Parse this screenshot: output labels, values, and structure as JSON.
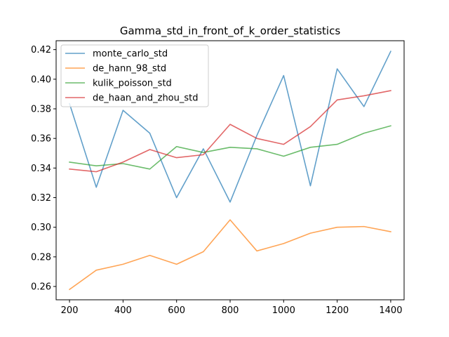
{
  "chart_data": {
    "type": "line",
    "title": "Gamma_std_in_front_of_k_order_statistics",
    "xlabel": "",
    "ylabel": "",
    "x": [
      200,
      300,
      400,
      500,
      600,
      700,
      800,
      900,
      1000,
      1100,
      1200,
      1300,
      1400
    ],
    "xlim": [
      150,
      1450
    ],
    "ylim": [
      0.251,
      0.426
    ],
    "xticks": [
      200,
      400,
      600,
      800,
      1000,
      1200,
      1400
    ],
    "xtick_labels": [
      "200",
      "400",
      "600",
      "800",
      "1000",
      "1200",
      "1400"
    ],
    "yticks": [
      0.26,
      0.28,
      0.3,
      0.32,
      0.34,
      0.36,
      0.38,
      0.4,
      0.42
    ],
    "ytick_labels": [
      "0.26",
      "0.28",
      "0.30",
      "0.32",
      "0.34",
      "0.36",
      "0.38",
      "0.40",
      "0.42"
    ],
    "grid": false,
    "legend_position": "top-left",
    "series": [
      {
        "name": "monte_carlo_std",
        "color": "#1f77b4",
        "values": [
          0.3835,
          0.327,
          0.379,
          0.3635,
          0.32,
          0.353,
          0.317,
          0.362,
          0.4025,
          0.328,
          0.407,
          0.3815,
          0.4188
        ]
      },
      {
        "name": "de_hann_98_std",
        "color": "#ff7f0e",
        "values": [
          0.258,
          0.271,
          0.275,
          0.281,
          0.275,
          0.2835,
          0.305,
          0.284,
          0.289,
          0.296,
          0.3,
          0.3005,
          0.297
        ]
      },
      {
        "name": "kulik_poisson_std",
        "color": "#2ca02c",
        "values": [
          0.344,
          0.3415,
          0.343,
          0.3393,
          0.3545,
          0.3505,
          0.354,
          0.353,
          0.348,
          0.354,
          0.356,
          0.3635,
          0.3685
        ]
      },
      {
        "name": "de_haan_and_zhou_std",
        "color": "#d62728",
        "values": [
          0.3393,
          0.3375,
          0.344,
          0.3525,
          0.347,
          0.349,
          0.3695,
          0.36,
          0.356,
          0.368,
          0.386,
          0.3888,
          0.3923
        ]
      }
    ]
  }
}
